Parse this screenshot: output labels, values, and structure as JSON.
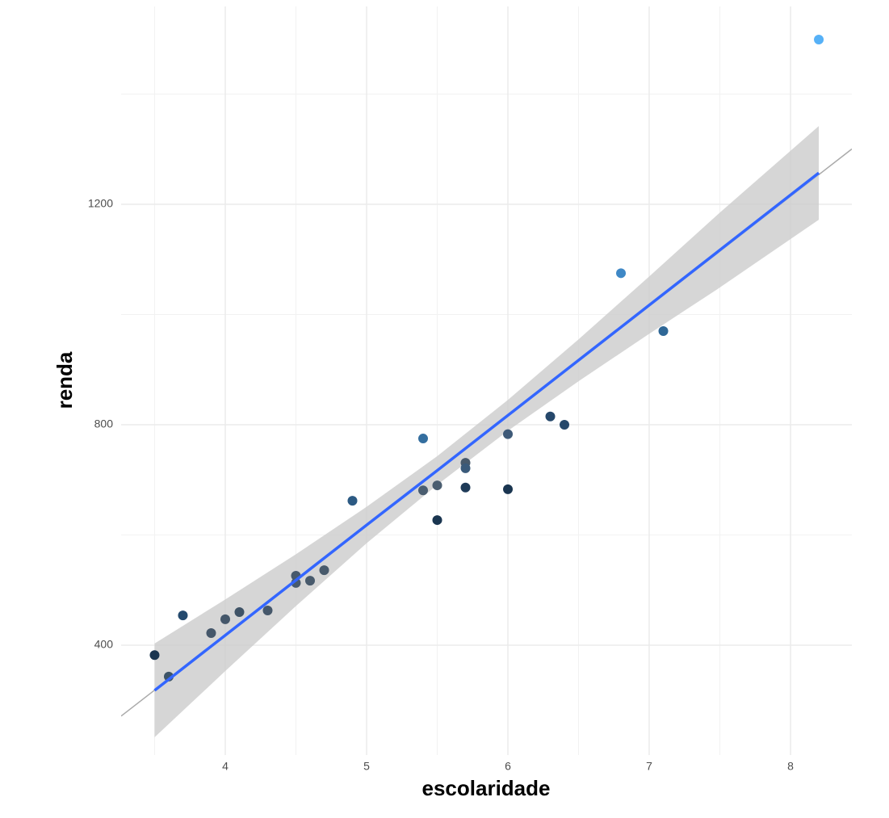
{
  "chart_data": {
    "type": "scatter",
    "xlabel": "escolaridade",
    "ylabel": "renda",
    "xlim": [
      3.263,
      8.434
    ],
    "ylim": [
      200.7,
      1559
    ],
    "xticks": [
      4,
      5,
      6,
      7,
      8
    ],
    "yticks": [
      400,
      800,
      1200
    ],
    "x_minor_grid": [
      3.5,
      4.5,
      5.5,
      6.5,
      7.5
    ],
    "y_minor_grid": [
      600,
      1000,
      1400
    ],
    "grid": true,
    "series": [
      {
        "x": [
          3.5,
          3.6,
          3.7,
          3.9,
          4.0,
          4.1,
          4.3,
          4.5,
          4.5,
          4.6,
          4.7,
          4.9,
          5.4,
          5.4,
          5.5,
          5.5,
          5.7,
          5.7,
          5.7,
          6.0,
          6.0,
          6.3,
          6.4,
          6.8,
          7.1,
          8.2
        ],
        "values": [
          382,
          343,
          454,
          422,
          447,
          460,
          463,
          526,
          513,
          517,
          536,
          662,
          775,
          681,
          690,
          627,
          731,
          721,
          686,
          783,
          683,
          815,
          800,
          1075,
          970,
          1499
        ],
        "colors": [
          "#1a3550",
          "#3d5468",
          "#244a6e",
          "#45576a",
          "#45576a",
          "#3f5366",
          "#45576a",
          "#485a6c",
          "#485a6c",
          "#485a6c",
          "#485a6c",
          "#2c5a83",
          "#346e9f",
          "#4a5d70",
          "#4a5d70",
          "#1a3550",
          "#47596b",
          "#3a5a7a",
          "#1f3b58",
          "#3e5a78",
          "#1a3550",
          "#26486b",
          "#26486b",
          "#3f88c6",
          "#2f6796",
          "#56b1f7"
        ]
      }
    ],
    "fit": {
      "color": "#3366ff",
      "band_color": "#cccccc",
      "x": [
        3.5,
        4,
        4.5,
        5,
        5.5,
        6,
        6.5,
        7,
        7.5,
        8.2
      ],
      "y": [
        318,
        418,
        518,
        618,
        717,
        817,
        917,
        1017,
        1117,
        1257
      ],
      "upper": [
        403,
        483,
        565,
        651,
        743,
        845,
        955,
        1069,
        1185,
        1342
      ],
      "lower": [
        233,
        353,
        471,
        585,
        691,
        789,
        879,
        965,
        1049,
        1172
      ]
    },
    "reference_line": {
      "intercept": -378,
      "slope": 199,
      "color": "#aaaaaa"
    }
  }
}
